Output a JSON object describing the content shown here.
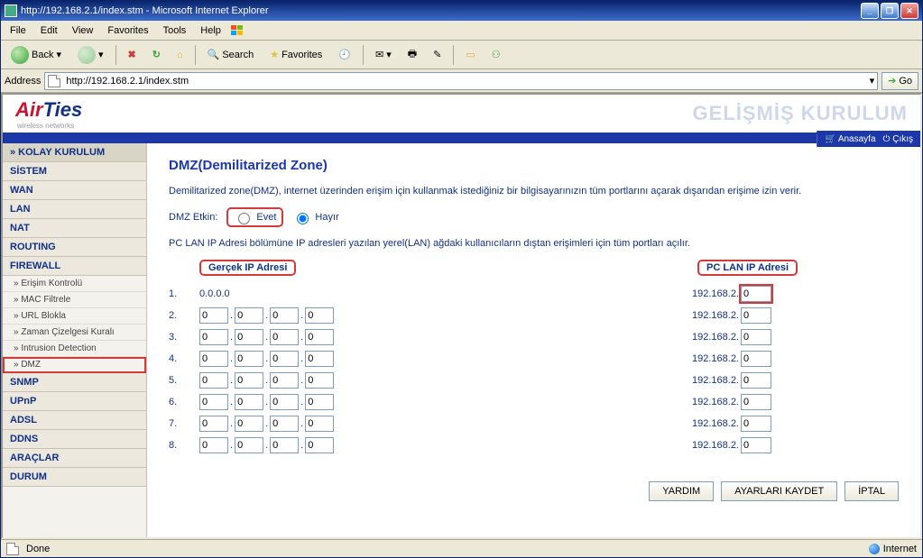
{
  "window": {
    "title": "http://192.168.2.1/index.stm - Microsoft Internet Explorer"
  },
  "menubar": [
    "File",
    "Edit",
    "View",
    "Favorites",
    "Tools",
    "Help"
  ],
  "toolbar": {
    "back": "Back",
    "search": "Search",
    "favorites": "Favorites"
  },
  "addressbar": {
    "label": "Address",
    "url": "http://192.168.2.1/index.stm",
    "go": "Go"
  },
  "brand": {
    "air": "Air",
    "ties": "Ties",
    "tagline": "wireless networks",
    "title": "GELİŞMİŞ KURULUM",
    "home": "Anasayfa",
    "exit": "Çıkış"
  },
  "sidebar": {
    "top": "» KOLAY KURULUM",
    "cats": [
      "SİSTEM",
      "WAN",
      "LAN",
      "NAT",
      "ROUTING",
      "FIREWALL"
    ],
    "fw_subs": [
      "» Erişim Kontrolü",
      "» MAC Filtrele",
      "» URL Blokla",
      "» Zaman Çizelgesi Kuralı",
      "» Intrusion Detection",
      "» DMZ"
    ],
    "cats2": [
      "SNMP",
      "UPnP",
      "ADSL",
      "DDNS",
      "ARAÇLAR",
      "DURUM"
    ]
  },
  "main": {
    "heading": "DMZ(Demilitarized Zone)",
    "desc": "Demilitarized zone(DMZ), internet üzerinden erişim için kullanmak istediğiniz bir bilgisayarınızın tüm portlarını açarak dışarıdan erişime izin verir.",
    "etkin_label": "DMZ Etkin:",
    "evet": "Evet",
    "hayir": "Hayır",
    "note": "PC LAN IP Adresi bölümüne IP adresleri yazılan yerel(LAN) ağdaki kullanıcıların dıştan erişimleri için tüm portları açılır.",
    "col1": "Gerçek IP Adresi",
    "col2": "PC LAN IP Adresi",
    "lan_prefix": "192.168.2.",
    "rows": [
      {
        "n": "1.",
        "static": "0.0.0.0",
        "lan": "0"
      },
      {
        "n": "2.",
        "o": [
          "0",
          "0",
          "0",
          "0"
        ],
        "lan": "0"
      },
      {
        "n": "3.",
        "o": [
          "0",
          "0",
          "0",
          "0"
        ],
        "lan": "0"
      },
      {
        "n": "4.",
        "o": [
          "0",
          "0",
          "0",
          "0"
        ],
        "lan": "0"
      },
      {
        "n": "5.",
        "o": [
          "0",
          "0",
          "0",
          "0"
        ],
        "lan": "0"
      },
      {
        "n": "6.",
        "o": [
          "0",
          "0",
          "0",
          "0"
        ],
        "lan": "0"
      },
      {
        "n": "7.",
        "o": [
          "0",
          "0",
          "0",
          "0"
        ],
        "lan": "0"
      },
      {
        "n": "8.",
        "o": [
          "0",
          "0",
          "0",
          "0"
        ],
        "lan": "0"
      }
    ],
    "btn_help": "YARDIM",
    "btn_save": "AYARLARI KAYDET",
    "btn_cancel": "İPTAL"
  },
  "status": {
    "left": "Done",
    "right": "Internet"
  },
  "colors": {
    "brand_blue": "#1c37a8",
    "brand_red": "#c81432",
    "hl_red": "#d43a3a",
    "sidebar_bg": "#f4f2ed"
  }
}
